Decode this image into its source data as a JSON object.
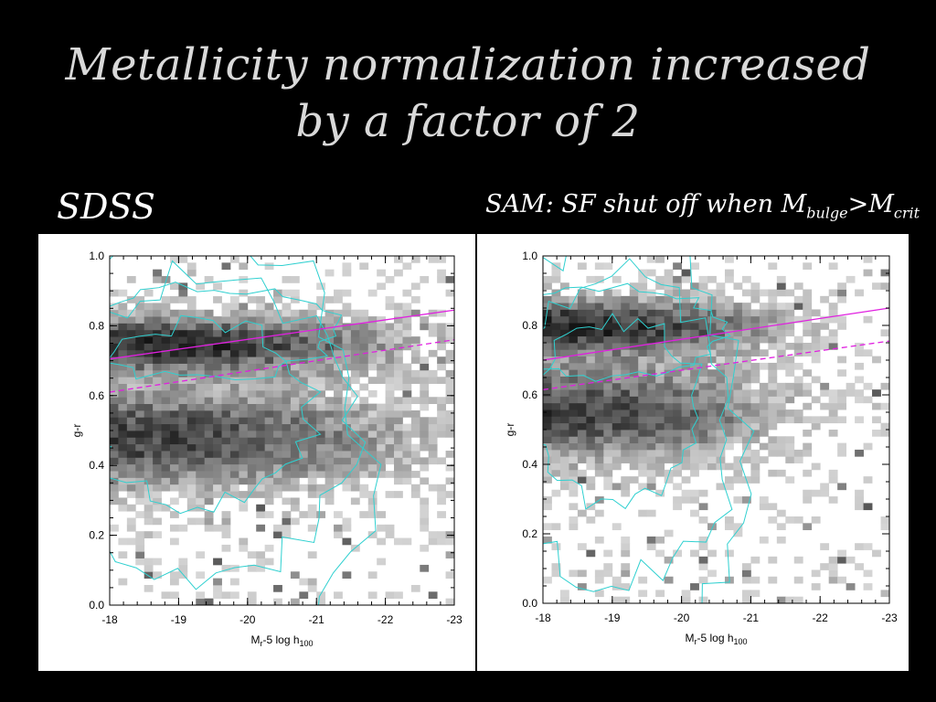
{
  "slide": {
    "title_line1": "Metallicity normalization increased",
    "title_line2": "by a factor of 2",
    "left_label": "SDSS",
    "right_label_prefix": "SAM: SF shut off when M",
    "right_label_sub1": "bulge",
    "right_label_mid": ">M",
    "right_label_sub2": "crit"
  },
  "colors": {
    "background": "#000000",
    "contour": "#2fd0d0",
    "fit_line": "#e020e0"
  },
  "chart_data": [
    {
      "type": "heatmap",
      "title": "",
      "xlabel": "M_r-5 log h_100",
      "ylabel": "g-r",
      "xlim": [
        -18,
        -23
      ],
      "ylim": [
        0.0,
        1.0
      ],
      "x_ticks": [
        "-18",
        "-19",
        "-20",
        "-21",
        "-22",
        "-23"
      ],
      "y_ticks": [
        "0.0",
        "0.2",
        "0.4",
        "0.6",
        "0.8",
        "1.0"
      ],
      "density_profile": {
        "red_sequence_center": 0.75,
        "blue_cloud_center": 0.48,
        "faint_limit_x": -21.8,
        "sparse_scatter": true
      },
      "contours": "cyan density contours",
      "fit_lines": [
        {
          "style": "solid",
          "x": [
            -18,
            -23
          ],
          "y": [
            0.705,
            0.845
          ]
        },
        {
          "style": "dashed",
          "x": [
            -18,
            -23
          ],
          "y": [
            0.61,
            0.76
          ]
        }
      ]
    },
    {
      "type": "heatmap",
      "title": "",
      "xlabel": "M_r-5 log h_100",
      "ylabel": "g-r",
      "xlim": [
        -18,
        -23
      ],
      "ylim": [
        0.0,
        1.0
      ],
      "x_ticks": [
        "-18",
        "-19",
        "-20",
        "-21",
        "-22",
        "-23"
      ],
      "y_ticks": [
        "0.0",
        "0.2",
        "0.4",
        "0.6",
        "0.8",
        "1.0"
      ],
      "density_profile": {
        "red_sequence_center": 0.8,
        "blue_cloud_center": 0.55,
        "faint_limit_x": -21.0,
        "sparse_scatter": true
      },
      "contours": "cyan density contours",
      "fit_lines": [
        {
          "style": "solid",
          "x": [
            -18,
            -23
          ],
          "y": [
            0.7,
            0.85
          ]
        },
        {
          "style": "dashed",
          "x": [
            -18,
            -23
          ],
          "y": [
            0.615,
            0.755
          ]
        }
      ]
    }
  ]
}
